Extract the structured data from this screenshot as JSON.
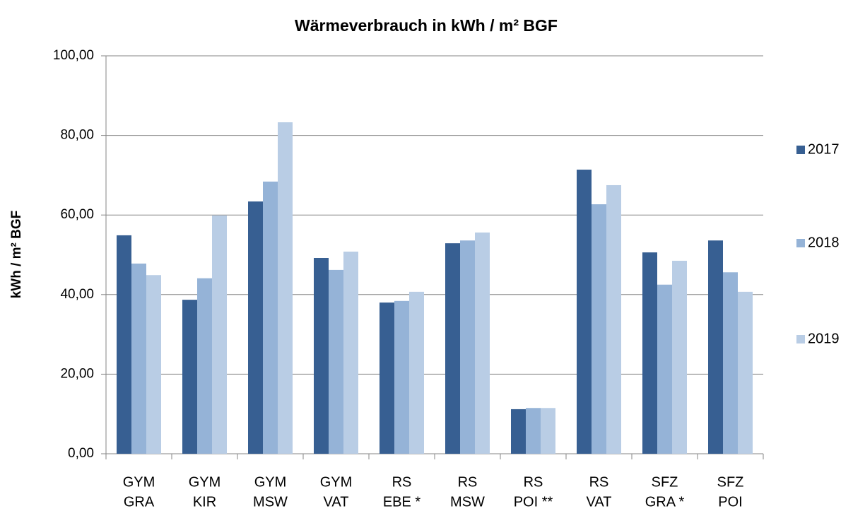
{
  "chart_data": {
    "type": "bar",
    "title": "Wärmeverbrauch in kWh / m² BGF",
    "y_label": "kWh / m² BGF",
    "categories": [
      [
        "GYM",
        "GRA"
      ],
      [
        "GYM",
        "KIR"
      ],
      [
        "GYM",
        "MSW"
      ],
      [
        "GYM",
        "VAT"
      ],
      [
        "RS",
        "EBE *"
      ],
      [
        "RS",
        "MSW"
      ],
      [
        "RS",
        "POI **"
      ],
      [
        "RS",
        "VAT"
      ],
      [
        "SFZ",
        "GRA *"
      ],
      [
        "SFZ",
        "POI"
      ]
    ],
    "series": [
      {
        "name": "2017",
        "color": "#375f92",
        "values": [
          54.9,
          38.7,
          63.4,
          49.2,
          38.0,
          52.9,
          11.2,
          71.4,
          50.6,
          53.6
        ]
      },
      {
        "name": "2018",
        "color": "#95b3d7",
        "values": [
          47.8,
          44.1,
          68.4,
          46.2,
          38.4,
          53.6,
          11.5,
          62.7,
          42.5,
          45.6
        ]
      },
      {
        "name": "2019",
        "color": "#b9cde5",
        "values": [
          44.9,
          59.9,
          83.3,
          50.8,
          40.7,
          55.6,
          11.5,
          67.5,
          48.5,
          40.7
        ]
      }
    ],
    "ylim": [
      0,
      100
    ],
    "yticks": [
      {
        "value": 0,
        "label": "0,00"
      },
      {
        "value": 20,
        "label": "20,00"
      },
      {
        "value": 40,
        "label": "40,00"
      },
      {
        "value": 60,
        "label": "60,00"
      },
      {
        "value": 80,
        "label": "80,00"
      },
      {
        "value": 100,
        "label": "100,00"
      }
    ],
    "grid": true,
    "legend": "right"
  }
}
